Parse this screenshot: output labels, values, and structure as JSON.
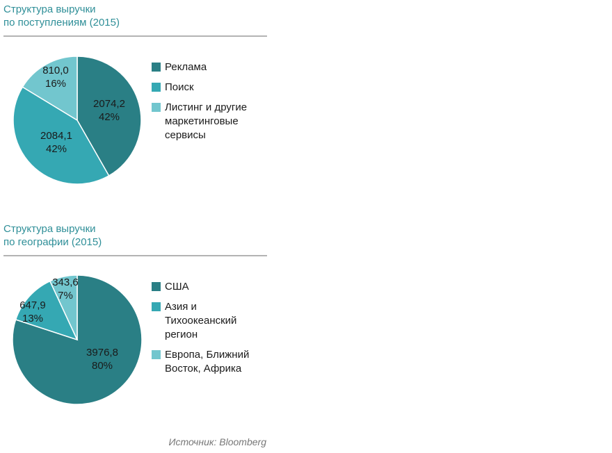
{
  "colors": {
    "dark": "#2a7f85",
    "mid": "#35a8b3",
    "light": "#72c6ce",
    "title": "#2f8f98"
  },
  "chart_data": [
    {
      "type": "pie",
      "title": [
        "Структура выручки",
        "по поступлениям (2015)"
      ],
      "legend_position": "right",
      "slices": [
        {
          "name": "Реклама",
          "value": 2074.2,
          "value_label": "2074,2",
          "percent_label": "42%",
          "color": "#2a7f85"
        },
        {
          "name": "Поиск",
          "value": 2084.1,
          "value_label": "2084,1",
          "percent_label": "42%",
          "color": "#35a8b3"
        },
        {
          "name": "Листинг и другие маркетинговые сервисы",
          "legend_lines": [
            "Листинг и другие",
            "маркетинговые",
            "сервисы"
          ],
          "value": 810.0,
          "value_label": "810,0",
          "percent_label": "16%",
          "color": "#72c6ce"
        }
      ]
    },
    {
      "type": "pie",
      "title": [
        "Структура выручки",
        "по географии (2015)"
      ],
      "legend_position": "right",
      "slices": [
        {
          "name": "США",
          "value": 3976.8,
          "value_label": "3976,8",
          "percent_label": "80%",
          "color": "#2a7f85"
        },
        {
          "name": "Азия и Тихоокеанский регион",
          "legend_lines": [
            "Азия и",
            "Тихоокеанский",
            "регион"
          ],
          "value": 647.9,
          "value_label": "647,9",
          "percent_label": "13%",
          "color": "#35a8b3"
        },
        {
          "name": "Европа, Ближний Восток, Африка",
          "legend_lines": [
            "Европа, Ближний",
            "Восток, Африка"
          ],
          "value": 343.6,
          "value_label": "343,6",
          "percent_label": "7%",
          "color": "#72c6ce"
        }
      ]
    }
  ],
  "source": "Источник: Bloomberg"
}
